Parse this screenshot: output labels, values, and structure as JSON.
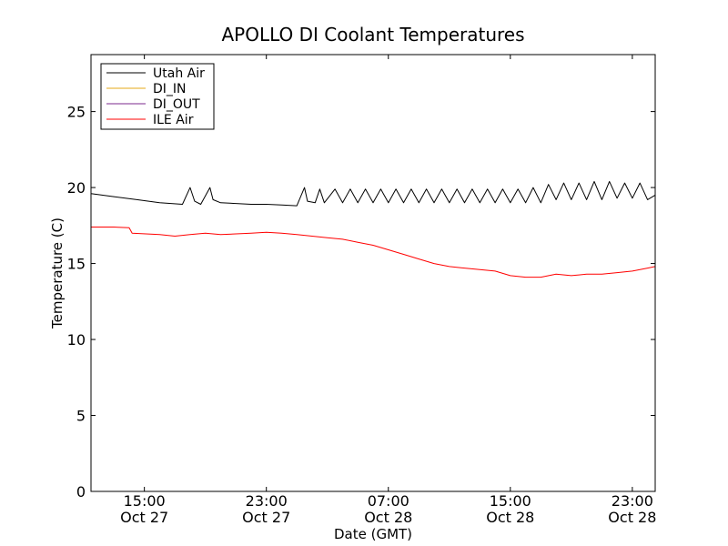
{
  "chart_data": {
    "type": "line",
    "title": "APOLLO DI Coolant Temperatures",
    "xlabel": "Date (GMT)",
    "ylabel": "Temperature (C)",
    "ylim": [
      0,
      28.75
    ],
    "xlim_hours": [
      11.5,
      48.5
    ],
    "grid": false,
    "legend_position": "top-left",
    "y_ticks": [
      {
        "value": 0,
        "label": "0"
      },
      {
        "value": 5,
        "label": "5"
      },
      {
        "value": 10,
        "label": "10"
      },
      {
        "value": 15,
        "label": "15"
      },
      {
        "value": 20,
        "label": "20"
      },
      {
        "value": 25,
        "label": "25"
      }
    ],
    "x_ticks": [
      {
        "hour": 15,
        "time": "15:00",
        "date": "Oct 27"
      },
      {
        "hour": 23,
        "time": "23:00",
        "date": "Oct 27"
      },
      {
        "hour": 31,
        "time": "07:00",
        "date": "Oct 28"
      },
      {
        "hour": 39,
        "time": "15:00",
        "date": "Oct 28"
      },
      {
        "hour": 47,
        "time": "23:00",
        "date": "Oct 28"
      }
    ],
    "series": [
      {
        "name": "Utah Air",
        "color": "#000000",
        "x_hours": [
          11.5,
          13.0,
          14.5,
          16.0,
          17.5,
          18.0,
          18.3,
          18.7,
          19.3,
          19.5,
          20.0,
          21.0,
          22.0,
          23.0,
          24.0,
          25.0,
          25.5,
          25.7,
          26.2,
          26.5,
          26.8,
          27.5,
          28.0,
          28.5,
          29.0,
          29.5,
          30.0,
          30.5,
          31.0,
          31.5,
          32.0,
          32.5,
          33.0,
          33.5,
          34.0,
          34.5,
          35.0,
          35.5,
          36.0,
          36.5,
          37.0,
          37.5,
          38.0,
          38.5,
          39.0,
          39.5,
          40.0,
          40.5,
          41.0,
          41.5,
          42.0,
          42.5,
          43.0,
          43.5,
          44.0,
          44.5,
          45.0,
          45.5,
          46.0,
          46.5,
          47.0,
          47.5,
          48.0,
          48.5
        ],
        "values": [
          19.6,
          19.4,
          19.2,
          19.0,
          18.9,
          20.0,
          19.1,
          18.9,
          20.0,
          19.2,
          19.0,
          18.95,
          18.9,
          18.9,
          18.85,
          18.8,
          20.0,
          19.1,
          19.0,
          19.9,
          19.0,
          19.9,
          19.0,
          19.9,
          19.0,
          19.9,
          19.0,
          19.9,
          19.0,
          19.9,
          19.0,
          19.9,
          19.0,
          19.9,
          19.0,
          19.9,
          19.0,
          19.9,
          19.0,
          19.9,
          19.0,
          19.9,
          19.0,
          19.9,
          19.0,
          19.9,
          19.0,
          20.0,
          19.0,
          20.2,
          19.2,
          20.3,
          19.2,
          20.3,
          19.2,
          20.4,
          19.2,
          20.4,
          19.3,
          20.3,
          19.3,
          20.3,
          19.2,
          19.5
        ]
      },
      {
        "name": "DI_IN",
        "color": "#e6a817",
        "x_hours": [],
        "values": []
      },
      {
        "name": "DI_OUT",
        "color": "#7b2a8e",
        "x_hours": [],
        "values": []
      },
      {
        "name": "ILE Air",
        "color": "#ff0000",
        "x_hours": [
          11.5,
          13.0,
          14.0,
          14.2,
          16.0,
          17.0,
          18.0,
          19.0,
          20.0,
          21.0,
          22.0,
          23.0,
          24.0,
          25.0,
          26.0,
          27.0,
          28.0,
          29.0,
          30.0,
          31.0,
          32.0,
          33.0,
          34.0,
          35.0,
          36.0,
          37.0,
          38.0,
          39.0,
          40.0,
          41.0,
          42.0,
          43.0,
          44.0,
          45.0,
          46.0,
          47.0,
          48.0,
          48.5
        ],
        "values": [
          17.4,
          17.4,
          17.35,
          17.0,
          16.9,
          16.8,
          16.9,
          17.0,
          16.9,
          16.95,
          17.0,
          17.05,
          17.0,
          16.9,
          16.8,
          16.7,
          16.6,
          16.4,
          16.2,
          15.9,
          15.6,
          15.3,
          15.0,
          14.8,
          14.7,
          14.6,
          14.5,
          14.2,
          14.1,
          14.1,
          14.3,
          14.2,
          14.3,
          14.3,
          14.4,
          14.5,
          14.7,
          14.8
        ]
      }
    ]
  }
}
